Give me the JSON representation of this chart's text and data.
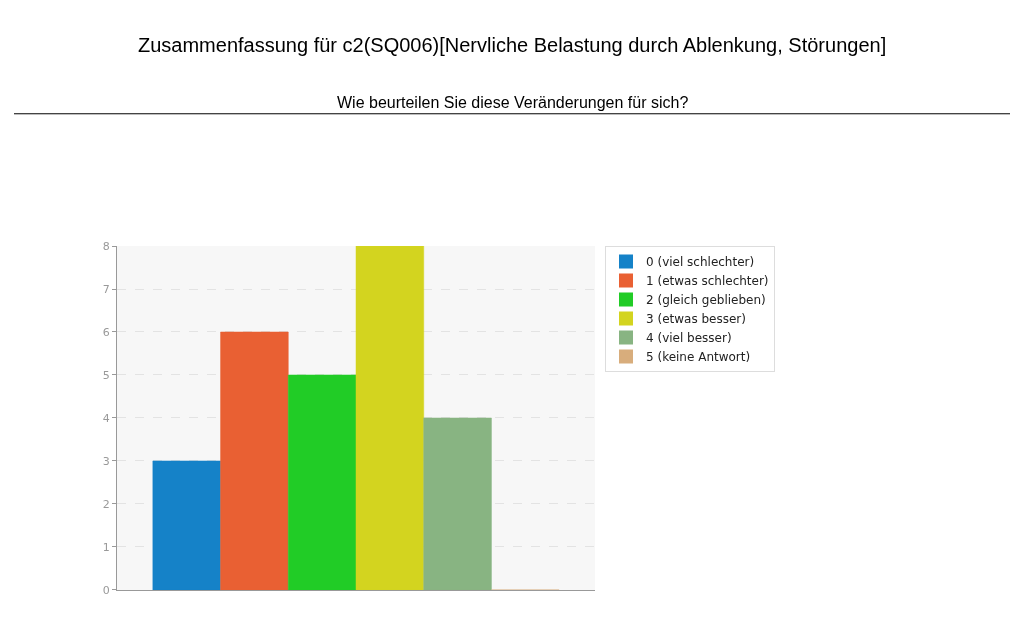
{
  "chart_data": {
    "type": "bar",
    "title": "Zusammenfassung für c2(SQ006)[Nervliche Belastung durch Ablenkung, Störungen]",
    "subtitle": "Wie beurteilen Sie diese Veränderungen für sich?",
    "categories": [
      null
    ],
    "series": [
      {
        "name": "0 (viel schlechter)",
        "color": "#1582c8",
        "values": [
          3
        ]
      },
      {
        "name": "1 (etwas schlechter)",
        "color": "#e96033",
        "values": [
          6
        ]
      },
      {
        "name": "2 (gleich geblieben)",
        "color": "#21cc26",
        "values": [
          5
        ]
      },
      {
        "name": "3 (etwas besser)",
        "color": "#d3d41f",
        "values": [
          8
        ]
      },
      {
        "name": "4 (viel besser)",
        "color": "#88b482",
        "values": [
          4
        ]
      },
      {
        "name": "5 (keine Antwort)",
        "color": "#d8ad7c",
        "values": [
          0
        ]
      }
    ],
    "ylim": [
      0,
      8
    ],
    "yticks": [
      0,
      1,
      2,
      3,
      4,
      5,
      6,
      7,
      8
    ],
    "grid": "y",
    "legend": "top right"
  }
}
